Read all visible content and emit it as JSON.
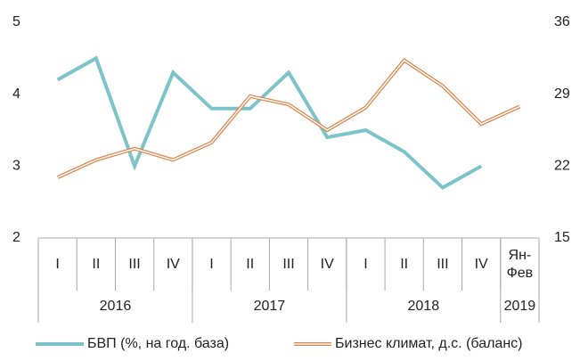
{
  "chart_data": {
    "type": "line",
    "categories": [
      "I",
      "II",
      "III",
      "IV",
      "I",
      "II",
      "III",
      "IV",
      "I",
      "II",
      "III",
      "IV",
      "Ян-Фев"
    ],
    "groups": [
      {
        "label": "2016",
        "span": 4
      },
      {
        "label": "2017",
        "span": 4
      },
      {
        "label": "2018",
        "span": 4
      },
      {
        "label": "2019",
        "span": 1
      }
    ],
    "series": [
      {
        "name": "БВП (%, на год. база)",
        "color": "#7cc4c9",
        "values": [
          4.2,
          4.5,
          3.0,
          4.3,
          3.8,
          3.8,
          4.3,
          3.4,
          3.5,
          3.2,
          2.7,
          3.0,
          null
        ]
      },
      {
        "name": "Бизнес климат, д.с. (баланс)",
        "color": "#e2844a",
        "axis": "y2",
        "values": [
          20.9,
          22.6,
          23.7,
          22.6,
          24.3,
          28.8,
          28.0,
          25.5,
          27.7,
          32.3,
          29.8,
          26.1,
          27.8
        ]
      }
    ],
    "ylim": [
      2,
      5
    ],
    "yticks": [
      2,
      3,
      4,
      5
    ],
    "y2lim": [
      15,
      36
    ],
    "y2ticks": [
      15,
      22,
      29,
      36
    ],
    "grid": false,
    "legend": "bottom"
  }
}
